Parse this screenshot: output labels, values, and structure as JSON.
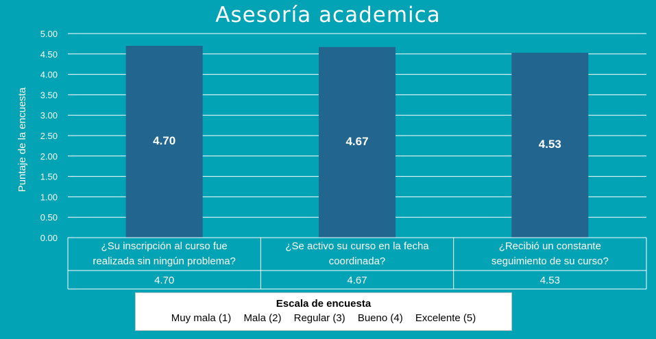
{
  "chart_data": {
    "type": "bar",
    "title": "Asesoría academica",
    "ylabel": "Puntaje de la encuesta",
    "ylim": [
      0,
      5
    ],
    "yticks": [
      "0.00",
      "0.50",
      "1.00",
      "1.50",
      "2.00",
      "2.50",
      "3.00",
      "3.50",
      "4.00",
      "4.50",
      "5.00"
    ],
    "grid": true,
    "categories": [
      [
        "¿Su inscripción al curso fue",
        "realizada sin ningún problema?"
      ],
      [
        "¿Se activo su curso en la fecha",
        "coordinada?"
      ],
      [
        "¿Recibió un constante",
        "seguimiento de su curso?"
      ]
    ],
    "values": [
      4.7,
      4.67,
      4.53
    ],
    "value_labels": [
      "4.70",
      "4.67",
      "4.53"
    ],
    "table_values": [
      "4.70",
      "4.67",
      "4.53"
    ],
    "colors": {
      "background": "#02a3b4",
      "bar": "#22668f",
      "grid": "#ffffff",
      "text": "#ffffff"
    }
  },
  "legend": {
    "title": "Escala de encuesta",
    "items": [
      "Muy mala (1)",
      "Mala (2)",
      "Regular (3)",
      "Bueno (4)",
      "Excelente (5)"
    ]
  }
}
